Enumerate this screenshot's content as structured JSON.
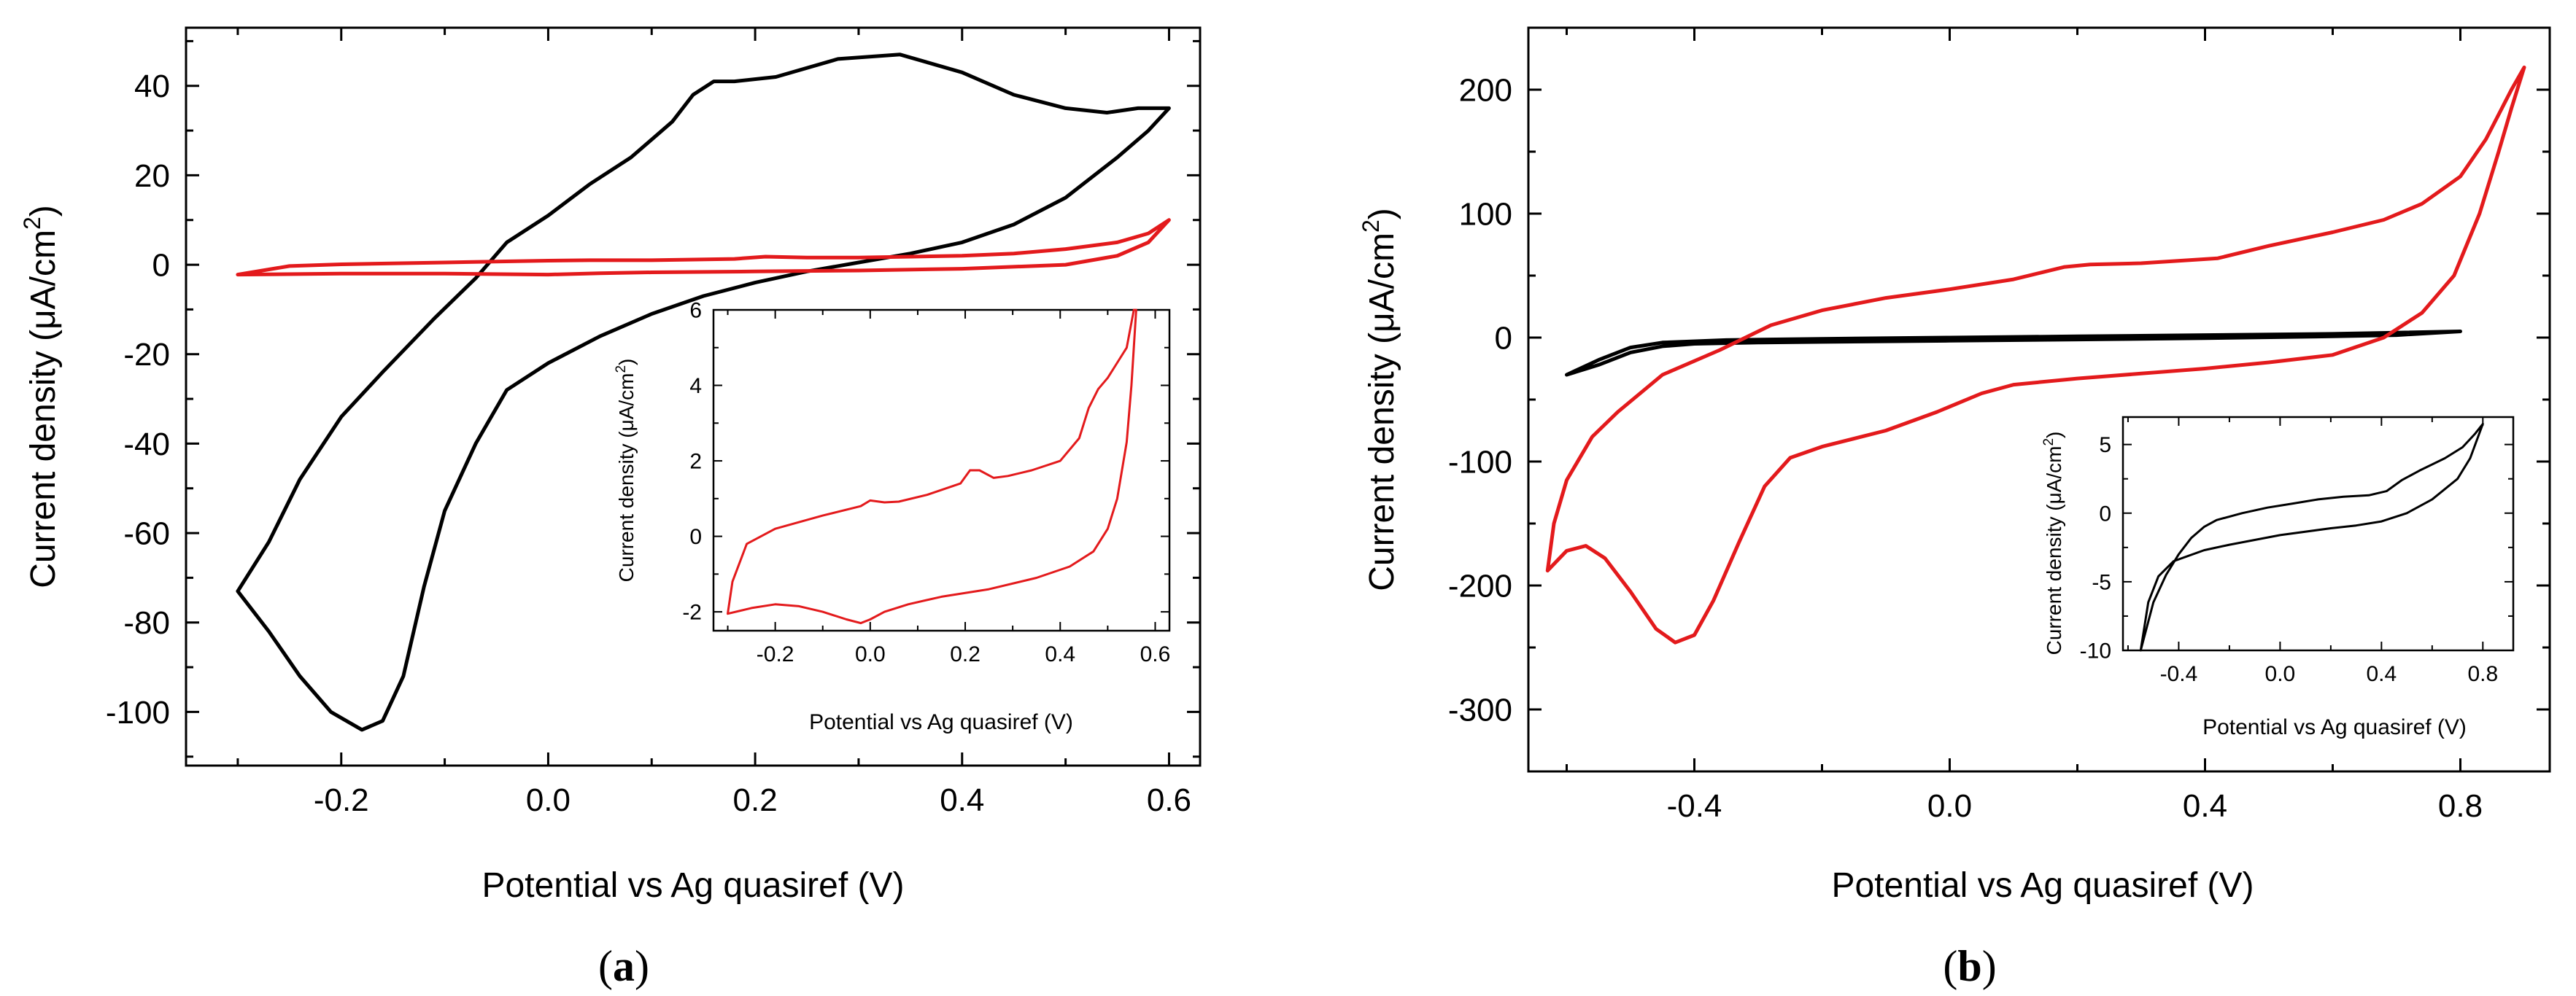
{
  "chart_data": [
    {
      "id": "a",
      "type": "line",
      "panel_label_open": "(",
      "panel_label_letter": "a",
      "panel_label_close": ")",
      "xlabel": "Potential vs Ag quasiref (V)",
      "ylabel_main": "Current density (μA/cm",
      "ylabel_sup": "2",
      "ylabel_close": ")",
      "xlim": [
        -0.35,
        0.63
      ],
      "ylim": [
        -112,
        53
      ],
      "xticks": [
        -0.2,
        0.0,
        0.2,
        0.4,
        0.6
      ],
      "xtick_labels": [
        "-0.2",
        "0.0",
        "0.2",
        "0.4",
        "0.6"
      ],
      "yticks": [
        40,
        20,
        0,
        -20,
        -40,
        -60,
        -80,
        -100
      ],
      "ytick_labels": [
        "40",
        "20",
        "0",
        "-20",
        "-40",
        "-60",
        "-80",
        "-100"
      ],
      "series": [
        {
          "name": "black",
          "color": "#000000",
          "points": [
            [
              -0.3,
              -73
            ],
            [
              -0.27,
              -82
            ],
            [
              -0.24,
              -92
            ],
            [
              -0.21,
              -100
            ],
            [
              -0.18,
              -104
            ],
            [
              -0.16,
              -102
            ],
            [
              -0.14,
              -92
            ],
            [
              -0.12,
              -72
            ],
            [
              -0.1,
              -55
            ],
            [
              -0.07,
              -40
            ],
            [
              -0.04,
              -28
            ],
            [
              0.0,
              -22
            ],
            [
              0.05,
              -16
            ],
            [
              0.1,
              -11
            ],
            [
              0.15,
              -7
            ],
            [
              0.2,
              -4
            ],
            [
              0.25,
              -1.5
            ],
            [
              0.3,
              0.5
            ],
            [
              0.35,
              2.5
            ],
            [
              0.4,
              5
            ],
            [
              0.45,
              9
            ],
            [
              0.5,
              15
            ],
            [
              0.55,
              24
            ],
            [
              0.58,
              30
            ],
            [
              0.6,
              35
            ],
            [
              0.57,
              35
            ],
            [
              0.54,
              34
            ],
            [
              0.5,
              35
            ],
            [
              0.45,
              38
            ],
            [
              0.4,
              43
            ],
            [
              0.34,
              47
            ],
            [
              0.28,
              46
            ],
            [
              0.22,
              42
            ],
            [
              0.18,
              41
            ],
            [
              0.16,
              41
            ],
            [
              0.14,
              38
            ],
            [
              0.12,
              32
            ],
            [
              0.08,
              24
            ],
            [
              0.04,
              18
            ],
            [
              0.0,
              11
            ],
            [
              -0.04,
              5
            ],
            [
              -0.07,
              -3
            ],
            [
              -0.11,
              -12
            ],
            [
              -0.16,
              -24
            ],
            [
              -0.2,
              -34
            ],
            [
              -0.24,
              -48
            ],
            [
              -0.27,
              -62
            ],
            [
              -0.3,
              -73
            ]
          ]
        },
        {
          "name": "red",
          "color": "#e31a1c",
          "points": [
            [
              -0.3,
              -2.2
            ],
            [
              -0.2,
              -2
            ],
            [
              -0.1,
              -2
            ],
            [
              0.0,
              -2.2
            ],
            [
              0.05,
              -1.9
            ],
            [
              0.1,
              -1.7
            ],
            [
              0.2,
              -1.5
            ],
            [
              0.3,
              -1.3
            ],
            [
              0.4,
              -0.9
            ],
            [
              0.5,
              0
            ],
            [
              0.55,
              2
            ],
            [
              0.58,
              5
            ],
            [
              0.6,
              10
            ],
            [
              0.58,
              7
            ],
            [
              0.55,
              5
            ],
            [
              0.5,
              3.5
            ],
            [
              0.45,
              2.5
            ],
            [
              0.4,
              2
            ],
            [
              0.3,
              1.6
            ],
            [
              0.25,
              1.6
            ],
            [
              0.21,
              1.8
            ],
            [
              0.18,
              1.3
            ],
            [
              0.1,
              1.0
            ],
            [
              0.04,
              1.0
            ],
            [
              0.0,
              0.9
            ],
            [
              -0.1,
              0.5
            ],
            [
              -0.2,
              0.1
            ],
            [
              -0.25,
              -0.3
            ],
            [
              -0.3,
              -2.2
            ]
          ]
        }
      ],
      "inset": {
        "xlabel": "Potential vs Ag quasiref (V)",
        "ylabel_main": "Current density (μA/cm",
        "ylabel_sup": "2",
        "ylabel_close": ")",
        "xlim": [
          -0.33,
          0.63
        ],
        "ylim": [
          -2.5,
          6
        ],
        "xticks": [
          -0.2,
          0.0,
          0.2,
          0.4,
          0.6
        ],
        "xtick_labels": [
          "-0.2",
          "0.0",
          "0.2",
          "0.4",
          "0.6"
        ],
        "yticks": [
          6,
          4,
          2,
          0,
          -2
        ],
        "ytick_labels": [
          "6",
          "4",
          "2",
          "0",
          "-2"
        ],
        "series": [
          {
            "name": "red",
            "color": "#e31a1c",
            "points": [
              [
                -0.3,
                -2.05
              ],
              [
                -0.25,
                -1.9
              ],
              [
                -0.2,
                -1.8
              ],
              [
                -0.15,
                -1.85
              ],
              [
                -0.1,
                -2.0
              ],
              [
                -0.05,
                -2.2
              ],
              [
                -0.02,
                -2.3
              ],
              [
                0.0,
                -2.2
              ],
              [
                0.03,
                -2.0
              ],
              [
                0.08,
                -1.8
              ],
              [
                0.15,
                -1.6
              ],
              [
                0.25,
                -1.4
              ],
              [
                0.35,
                -1.1
              ],
              [
                0.42,
                -0.8
              ],
              [
                0.47,
                -0.4
              ],
              [
                0.5,
                0.2
              ],
              [
                0.52,
                1.0
              ],
              [
                0.54,
                2.5
              ],
              [
                0.55,
                4.0
              ],
              [
                0.56,
                6.0
              ],
              [
                0.555,
                6.0
              ],
              [
                0.54,
                5.0
              ],
              [
                0.52,
                4.6
              ],
              [
                0.5,
                4.2
              ],
              [
                0.48,
                3.9
              ],
              [
                0.46,
                3.4
              ],
              [
                0.44,
                2.6
              ],
              [
                0.4,
                2.0
              ],
              [
                0.34,
                1.75
              ],
              [
                0.29,
                1.6
              ],
              [
                0.26,
                1.55
              ],
              [
                0.23,
                1.75
              ],
              [
                0.21,
                1.75
              ],
              [
                0.19,
                1.4
              ],
              [
                0.12,
                1.1
              ],
              [
                0.06,
                0.92
              ],
              [
                0.03,
                0.9
              ],
              [
                0.0,
                0.95
              ],
              [
                -0.02,
                0.8
              ],
              [
                -0.1,
                0.55
              ],
              [
                -0.2,
                0.2
              ],
              [
                -0.26,
                -0.2
              ],
              [
                -0.29,
                -1.2
              ],
              [
                -0.3,
                -2.05
              ]
            ]
          }
        ]
      }
    },
    {
      "id": "b",
      "type": "line",
      "panel_label_open": "(",
      "panel_label_letter": "b",
      "panel_label_close": ")",
      "xlabel": "Potential vs Ag quasiref (V)",
      "ylabel_main": "Current density (μA/cm",
      "ylabel_sup": "2",
      "ylabel_close": ")",
      "xlim": [
        -0.66,
        0.94
      ],
      "ylim": [
        -350,
        250
      ],
      "xticks": [
        -0.4,
        0.0,
        0.4,
        0.8
      ],
      "xtick_labels": [
        "-0.4",
        "0.0",
        "0.4",
        "0.8"
      ],
      "yticks": [
        200,
        100,
        0,
        -100,
        -200,
        -300
      ],
      "ytick_labels": [
        "200",
        "100",
        "0",
        "-100",
        "-200",
        "-300"
      ],
      "series": [
        {
          "name": "black",
          "color": "#000000",
          "points": [
            [
              -0.6,
              -30
            ],
            [
              -0.55,
              -22
            ],
            [
              -0.5,
              -12
            ],
            [
              -0.45,
              -7
            ],
            [
              -0.4,
              -5
            ],
            [
              -0.3,
              -4
            ],
            [
              -0.2,
              -3.5
            ],
            [
              0.0,
              -2.5
            ],
            [
              0.2,
              -1.5
            ],
            [
              0.4,
              -0.5
            ],
            [
              0.6,
              1
            ],
            [
              0.7,
              2
            ],
            [
              0.8,
              5
            ],
            [
              0.7,
              4
            ],
            [
              0.6,
              3
            ],
            [
              0.4,
              2
            ],
            [
              0.2,
              1
            ],
            [
              0.0,
              0
            ],
            [
              -0.2,
              -1
            ],
            [
              -0.35,
              -2
            ],
            [
              -0.45,
              -4
            ],
            [
              -0.5,
              -8
            ],
            [
              -0.55,
              -18
            ],
            [
              -0.6,
              -30
            ]
          ]
        },
        {
          "name": "red",
          "color": "#e31a1c",
          "points": [
            [
              -0.63,
              -188
            ],
            [
              -0.6,
              -172
            ],
            [
              -0.57,
              -168
            ],
            [
              -0.54,
              -178
            ],
            [
              -0.5,
              -205
            ],
            [
              -0.46,
              -235
            ],
            [
              -0.43,
              -246
            ],
            [
              -0.4,
              -240
            ],
            [
              -0.37,
              -212
            ],
            [
              -0.33,
              -165
            ],
            [
              -0.29,
              -120
            ],
            [
              -0.25,
              -97
            ],
            [
              -0.2,
              -88
            ],
            [
              -0.1,
              -75
            ],
            [
              -0.02,
              -60
            ],
            [
              0.05,
              -45
            ],
            [
              0.1,
              -38
            ],
            [
              0.2,
              -33
            ],
            [
              0.3,
              -29
            ],
            [
              0.4,
              -25
            ],
            [
              0.5,
              -20
            ],
            [
              0.6,
              -14
            ],
            [
              0.68,
              0
            ],
            [
              0.74,
              20
            ],
            [
              0.79,
              50
            ],
            [
              0.83,
              100
            ],
            [
              0.86,
              150
            ],
            [
              0.88,
              185
            ],
            [
              0.9,
              218
            ],
            [
              0.88,
              200
            ],
            [
              0.84,
              160
            ],
            [
              0.8,
              130
            ],
            [
              0.74,
              108
            ],
            [
              0.68,
              95
            ],
            [
              0.6,
              85
            ],
            [
              0.5,
              74
            ],
            [
              0.42,
              64
            ],
            [
              0.3,
              60
            ],
            [
              0.22,
              59
            ],
            [
              0.18,
              57
            ],
            [
              0.1,
              47
            ],
            [
              0.0,
              39
            ],
            [
              -0.1,
              32
            ],
            [
              -0.2,
              22
            ],
            [
              -0.28,
              10
            ],
            [
              -0.36,
              -10
            ],
            [
              -0.45,
              -30
            ],
            [
              -0.52,
              -60
            ],
            [
              -0.56,
              -80
            ],
            [
              -0.6,
              -115
            ],
            [
              -0.62,
              -150
            ],
            [
              -0.63,
              -188
            ]
          ]
        }
      ],
      "inset": {
        "xlabel": "Potential vs Ag quasiref (V)",
        "ylabel_main": "Current density (μA/cm",
        "ylabel_sup": "2",
        "ylabel_close": ")",
        "xlim": [
          -0.62,
          0.92
        ],
        "ylim": [
          -10,
          7
        ],
        "xticks": [
          -0.4,
          0.0,
          0.4,
          0.8
        ],
        "xtick_labels": [
          "-0.4",
          "0.0",
          "0.4",
          "0.8"
        ],
        "yticks": [
          5,
          0,
          -5,
          -10
        ],
        "ytick_labels": [
          "5",
          "0",
          "-5",
          "-10"
        ],
        "series": [
          {
            "name": "black",
            "color": "#000000",
            "points": [
              [
                -0.55,
                -10
              ],
              [
                -0.52,
                -6.5
              ],
              [
                -0.48,
                -4.6
              ],
              [
                -0.42,
                -3.5
              ],
              [
                -0.3,
                -2.7
              ],
              [
                -0.2,
                -2.3
              ],
              [
                0.0,
                -1.6
              ],
              [
                0.2,
                -1.1
              ],
              [
                0.3,
                -0.9
              ],
              [
                0.4,
                -0.6
              ],
              [
                0.5,
                0.0
              ],
              [
                0.6,
                1.0
              ],
              [
                0.7,
                2.5
              ],
              [
                0.75,
                4.0
              ],
              [
                0.8,
                6.5
              ],
              [
                0.77,
                5.8
              ],
              [
                0.72,
                4.8
              ],
              [
                0.65,
                4.0
              ],
              [
                0.55,
                3.1
              ],
              [
                0.48,
                2.4
              ],
              [
                0.42,
                1.6
              ],
              [
                0.35,
                1.3
              ],
              [
                0.25,
                1.2
              ],
              [
                0.15,
                1.0
              ],
              [
                0.05,
                0.7
              ],
              [
                -0.05,
                0.4
              ],
              [
                -0.15,
                0.0
              ],
              [
                -0.25,
                -0.5
              ],
              [
                -0.3,
                -1.0
              ],
              [
                -0.35,
                -1.8
              ],
              [
                -0.4,
                -3.0
              ],
              [
                -0.45,
                -4.5
              ],
              [
                -0.5,
                -6.5
              ],
              [
                -0.55,
                -10
              ]
            ]
          }
        ]
      }
    }
  ]
}
